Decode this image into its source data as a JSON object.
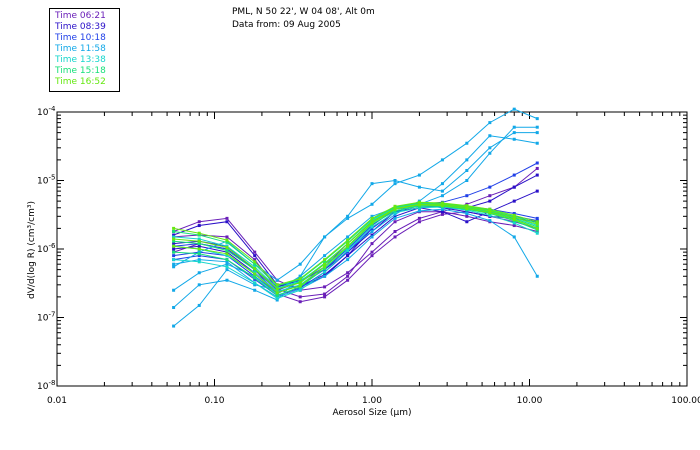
{
  "header": {
    "station": "PML, N 50 22', W 04 08', Alt 0m",
    "date_line": "Data from: 09 Aug 2005"
  },
  "legend": [
    {
      "label": "Time 06:21",
      "color": "#6a1fb8"
    },
    {
      "label": "Time 08:39",
      "color": "#2a10c8"
    },
    {
      "label": "Time 10:18",
      "color": "#2040e8"
    },
    {
      "label": "Time 11:58",
      "color": "#12a8e8"
    },
    {
      "label": "Time 13:38",
      "color": "#17d6cc"
    },
    {
      "label": "Time 15:18",
      "color": "#17e07a"
    },
    {
      "label": "Time 16:52",
      "color": "#66e812"
    }
  ],
  "chart_data": {
    "type": "line",
    "xscale": "log",
    "yscale": "log",
    "xlabel": "Aerosol Size (µm)",
    "ylabel": "dV/d(log R) (cm³/cm³)",
    "xlim": [
      0.01,
      100.0
    ],
    "ylim": [
      1e-08,
      0.0001
    ],
    "x_tick_labels": [
      "0.01",
      "0.10",
      "1.00",
      "10.00",
      "100.00"
    ],
    "y_ticks": [
      {
        "mantissa": "10",
        "exponent": "-8"
      },
      {
        "mantissa": "10",
        "exponent": "-7"
      },
      {
        "mantissa": "10",
        "exponent": "-6"
      },
      {
        "mantissa": "10",
        "exponent": "-5"
      },
      {
        "mantissa": "10",
        "exponent": "-4"
      }
    ],
    "x": [
      0.055,
      0.08,
      0.12,
      0.18,
      0.25,
      0.35,
      0.5,
      0.7,
      1.0,
      1.4,
      2.0,
      2.8,
      4.0,
      5.6,
      8.0,
      11.2
    ],
    "series": [
      {
        "name": "Time 06:21",
        "color": "#6a1fb8",
        "values": [
          1.5e-06,
          1.6e-06,
          1.5e-06,
          7e-07,
          2.6e-07,
          2e-07,
          2.2e-07,
          4e-07,
          1.2e-06,
          2.5e-06,
          3.5e-06,
          3.5e-06,
          3e-06,
          2.5e-06,
          2.2e-06,
          1.8e-06
        ]
      },
      {
        "name": "Time 06:21",
        "color": "#6a1fb8",
        "values": [
          9e-07,
          1.2e-06,
          1e-06,
          5e-07,
          2.2e-07,
          1.7e-07,
          2e-07,
          3.5e-07,
          8e-07,
          1.5e-06,
          2.5e-06,
          3.2e-06,
          3.5e-06,
          3e-06,
          2.5e-06,
          2e-06
        ]
      },
      {
        "name": "Time 06:21",
        "color": "#6a1fb8",
        "values": [
          1.8e-06,
          2.5e-06,
          2.8e-06,
          9e-07,
          3.5e-07,
          2.5e-07,
          2.8e-07,
          4.5e-07,
          9e-07,
          1.8e-06,
          2.8e-06,
          3.5e-06,
          4.5e-06,
          6e-06,
          8e-06,
          1.5e-05
        ]
      },
      {
        "name": "Time 08:39",
        "color": "#2a10c8",
        "values": [
          1.2e-06,
          1.3e-06,
          1.1e-06,
          5e-07,
          2.8e-07,
          3.5e-07,
          5e-07,
          9e-07,
          1.8e-06,
          3.5e-06,
          4.5e-06,
          4e-06,
          3.5e-06,
          3e-06,
          2.8e-06,
          2.5e-06
        ]
      },
      {
        "name": "Time 08:39",
        "color": "#2a10c8",
        "values": [
          1.6e-06,
          2.2e-06,
          2.5e-06,
          8e-07,
          3e-07,
          2.8e-07,
          4e-07,
          8e-07,
          2e-06,
          3.5e-06,
          4e-06,
          3.5e-06,
          2.5e-06,
          3.5e-06,
          5e-06,
          7e-06
        ]
      },
      {
        "name": "Time 08:39",
        "color": "#2a10c8",
        "values": [
          1e-06,
          1.1e-06,
          9e-07,
          4.5e-07,
          2.4e-07,
          2.9e-07,
          4.2e-07,
          8e-07,
          1.6e-06,
          3e-06,
          4e-06,
          4.2e-06,
          4e-06,
          5e-06,
          8e-06,
          1.2e-05
        ]
      },
      {
        "name": "Time 10:18",
        "color": "#2040e8",
        "values": [
          8e-07,
          9e-07,
          8e-07,
          4e-07,
          2.3e-07,
          3e-07,
          5e-07,
          1e-06,
          2.2e-06,
          3.8e-06,
          4.2e-06,
          4.2e-06,
          3.8e-06,
          3.4e-06,
          3e-06,
          2.6e-06
        ]
      },
      {
        "name": "Time 10:18",
        "color": "#2040e8",
        "values": [
          1.1e-06,
          1.2e-06,
          1e-06,
          5e-07,
          2.5e-07,
          3.3e-07,
          5.5e-07,
          1.2e-06,
          2.5e-06,
          4e-06,
          4.5e-06,
          4.8e-06,
          6e-06,
          8e-06,
          1.2e-05,
          1.8e-05
        ]
      },
      {
        "name": "Time 10:18",
        "color": "#2040e8",
        "values": [
          7e-07,
          8e-07,
          7e-07,
          3.6e-07,
          2.1e-07,
          2.7e-07,
          4.6e-07,
          9e-07,
          2e-06,
          3.5e-06,
          4.3e-06,
          4.4e-06,
          4.2e-06,
          3.8e-06,
          3.3e-06,
          2.8e-06
        ]
      },
      {
        "name": "Time 11:58",
        "color": "#12a8e8",
        "values": [
          7.5e-08,
          1.5e-07,
          5e-07,
          3e-07,
          2.5e-07,
          4e-07,
          8e-07,
          1.5e-06,
          3e-06,
          4e-06,
          4.5e-06,
          6e-06,
          1e-05,
          2.5e-05,
          6e-05,
          6e-05
        ]
      },
      {
        "name": "Time 11:58",
        "color": "#12a8e8",
        "values": [
          1.4e-07,
          3e-07,
          3.5e-07,
          2.5e-07,
          1.8e-07,
          4e-07,
          1.5e-06,
          3e-06,
          9e-06,
          1e-05,
          8e-06,
          7e-06,
          1.4e-05,
          3e-05,
          5e-05,
          5e-05
        ]
      },
      {
        "name": "Time 11:58",
        "color": "#12a8e8",
        "values": [
          5.5e-07,
          9e-07,
          1.3e-06,
          6e-07,
          3.5e-07,
          6e-07,
          1.5e-06,
          2.8e-06,
          4.5e-06,
          9e-06,
          1.2e-05,
          2e-05,
          3.5e-05,
          7e-05,
          0.00011,
          8e-05
        ]
      },
      {
        "name": "Time 11:58",
        "color": "#12a8e8",
        "values": [
          2.5e-07,
          4.5e-07,
          6e-07,
          4e-07,
          2.2e-07,
          3.4e-07,
          6e-07,
          1e-06,
          1.8e-06,
          3.2e-06,
          5e-06,
          9e-06,
          2e-05,
          4.5e-05,
          4e-05,
          3.5e-05
        ]
      },
      {
        "name": "Time 11:58",
        "color": "#12a8e8",
        "values": [
          6e-07,
          7e-07,
          6.5e-07,
          3.2e-07,
          2e-07,
          2.6e-07,
          4e-07,
          7e-07,
          1.5e-06,
          2.8e-06,
          3.6e-06,
          3.8e-06,
          3.3e-06,
          2.6e-06,
          1.5e-06,
          4e-07
        ]
      },
      {
        "name": "Time 13:38",
        "color": "#17d6cc",
        "values": [
          1.1e-06,
          1e-06,
          8e-07,
          4.5e-07,
          2.4e-07,
          3e-07,
          5.5e-07,
          1.1e-06,
          2.4e-06,
          3.8e-06,
          4.3e-06,
          4.3e-06,
          3.9e-06,
          3.4e-06,
          2.7e-06,
          2e-06
        ]
      },
      {
        "name": "Time 13:38",
        "color": "#17d6cc",
        "values": [
          1.5e-06,
          1.4e-06,
          1.1e-06,
          5.5e-07,
          2.7e-07,
          3.4e-07,
          6e-07,
          1.2e-06,
          2.6e-06,
          4e-06,
          4.6e-06,
          4.5e-06,
          4.1e-06,
          3.6e-06,
          2.9e-06,
          2.2e-06
        ]
      },
      {
        "name": "Time 13:38",
        "color": "#17d6cc",
        "values": [
          7e-07,
          6.5e-07,
          5.5e-07,
          3.2e-07,
          1.9e-07,
          2.5e-07,
          4.6e-07,
          9.5e-07,
          2.1e-06,
          3.4e-06,
          4e-06,
          4.1e-06,
          3.7e-06,
          3.1e-06,
          2.4e-06,
          1.7e-06
        ]
      },
      {
        "name": "Time 15:18",
        "color": "#17e07a",
        "values": [
          1.3e-06,
          1.2e-06,
          9.5e-07,
          5e-07,
          2.6e-07,
          3.3e-07,
          6.2e-07,
          1.2e-06,
          2.5e-06,
          3.9e-06,
          4.4e-06,
          4.4e-06,
          4e-06,
          3.5e-06,
          2.8e-06,
          2.1e-06
        ]
      },
      {
        "name": "Time 15:18",
        "color": "#17e07a",
        "values": [
          9e-07,
          8.5e-07,
          7e-07,
          3.8e-07,
          2.1e-07,
          2.8e-07,
          5.2e-07,
          1.05e-06,
          2.3e-06,
          3.6e-06,
          4.2e-06,
          4.2e-06,
          3.8e-06,
          3.3e-06,
          2.6e-06,
          1.9e-06
        ]
      },
      {
        "name": "Time 15:18",
        "color": "#17e07a",
        "values": [
          1.8e-06,
          1.6e-06,
          1.25e-06,
          6e-07,
          2.9e-07,
          3.6e-07,
          6.8e-07,
          1.3e-06,
          2.7e-06,
          4.1e-06,
          4.7e-06,
          4.6e-06,
          4.2e-06,
          3.7e-06,
          3e-06,
          2.4e-06
        ]
      },
      {
        "name": "Time 16:52",
        "color": "#66e812",
        "values": [
          2e-06,
          1.7e-06,
          1.35e-06,
          6.5e-07,
          3e-07,
          3.7e-07,
          7e-07,
          1.35e-06,
          2.8e-06,
          4.2e-06,
          4.8e-06,
          4.7e-06,
          4.3e-06,
          3.8e-06,
          3.1e-06,
          2.5e-06
        ]
      },
      {
        "name": "Time 16:52",
        "color": "#66e812",
        "values": [
          1.4e-06,
          1.3e-06,
          1.05e-06,
          5.2e-07,
          2.6e-07,
          3.2e-07,
          6e-07,
          1.2e-06,
          2.5e-06,
          3.9e-06,
          4.5e-06,
          4.5e-06,
          4.1e-06,
          3.6e-06,
          2.9e-06,
          2.3e-06
        ]
      },
      {
        "name": "Time 16:52",
        "color": "#66e812",
        "values": [
          1.1e-06,
          1e-06,
          8.5e-07,
          4.3e-07,
          2.3e-07,
          2.9e-07,
          5.5e-07,
          1.1e-06,
          2.4e-06,
          3.8e-06,
          4.4e-06,
          4.3e-06,
          3.9e-06,
          3.4e-06,
          2.7e-06,
          2e-06
        ]
      }
    ]
  }
}
